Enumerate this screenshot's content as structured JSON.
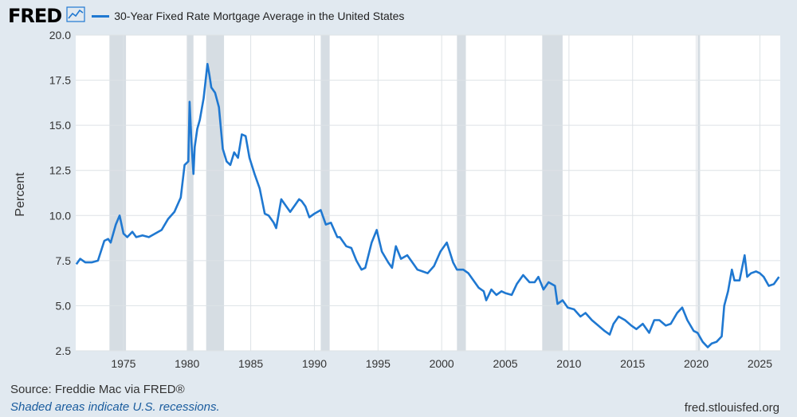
{
  "brand": {
    "logo": "FRED",
    "icon": "chart-line-icon"
  },
  "colors": {
    "line": "#1f78d1",
    "recession": "#d6dde3",
    "plot_bg": "#ffffff",
    "page_bg": "#e1e9f0",
    "grid": "#dde2e6"
  },
  "footer": {
    "source": "Source: Freddie Mac via FRED®",
    "note": "Shaded areas indicate U.S. recessions.",
    "url": "fred.stlouisfed.org"
  },
  "chart_data": {
    "type": "line",
    "title": "",
    "xlabel": "",
    "ylabel": "Percent",
    "xlim": [
      1971.25,
      2026.6
    ],
    "ylim": [
      2.5,
      20.0
    ],
    "yticks": [
      "2.5",
      "5.0",
      "7.5",
      "10.0",
      "12.5",
      "15.0",
      "17.5",
      "20.0"
    ],
    "xticks": [
      "1975",
      "1980",
      "1985",
      "1990",
      "1995",
      "2000",
      "2005",
      "2010",
      "2015",
      "2020",
      "2025"
    ],
    "grid": true,
    "legend_position": "top-left",
    "recessions": [
      [
        1973.9,
        1975.2
      ],
      [
        1980.0,
        1980.5
      ],
      [
        1981.5,
        1982.9
      ],
      [
        1990.5,
        1991.2
      ],
      [
        2001.2,
        2001.9
      ],
      [
        2007.9,
        2009.5
      ],
      [
        2020.1,
        2020.3
      ]
    ],
    "series": [
      {
        "name": "30-Year Fixed Rate Mortgage Average in the United States",
        "x": [
          1971.3,
          1971.6,
          1972.0,
          1972.5,
          1973.0,
          1973.5,
          1973.8,
          1974.0,
          1974.4,
          1974.7,
          1975.0,
          1975.3,
          1975.7,
          1976.0,
          1976.5,
          1977.0,
          1977.5,
          1978.0,
          1978.5,
          1979.0,
          1979.5,
          1979.8,
          1980.1,
          1980.2,
          1980.35,
          1980.5,
          1980.6,
          1980.8,
          1981.0,
          1981.3,
          1981.6,
          1981.75,
          1981.9,
          1982.2,
          1982.5,
          1982.8,
          1983.1,
          1983.4,
          1983.7,
          1984.0,
          1984.3,
          1984.6,
          1984.9,
          1985.3,
          1985.7,
          1986.1,
          1986.4,
          1986.8,
          1987.0,
          1987.4,
          1987.8,
          1988.1,
          1988.5,
          1988.8,
          1989.0,
          1989.3,
          1989.6,
          1990.0,
          1990.5,
          1990.9,
          1991.3,
          1991.8,
          1992.0,
          1992.5,
          1992.9,
          1993.3,
          1993.7,
          1994.0,
          1994.5,
          1994.9,
          1995.3,
          1995.8,
          1996.1,
          1996.4,
          1996.8,
          1997.3,
          1997.8,
          1998.1,
          1998.5,
          1998.9,
          1999.4,
          1999.9,
          2000.4,
          2000.9,
          2001.2,
          2001.7,
          2002.1,
          2002.5,
          2002.9,
          2003.3,
          2003.5,
          2003.9,
          2004.3,
          2004.7,
          2005.0,
          2005.5,
          2005.9,
          2006.4,
          2006.9,
          2007.3,
          2007.6,
          2008.0,
          2008.4,
          2008.9,
          2009.1,
          2009.5,
          2009.9,
          2010.4,
          2010.9,
          2011.3,
          2011.8,
          2012.3,
          2012.8,
          2013.2,
          2013.5,
          2013.9,
          2014.4,
          2014.9,
          2015.3,
          2015.8,
          2016.3,
          2016.7,
          2017.1,
          2017.6,
          2018.0,
          2018.5,
          2018.9,
          2019.3,
          2019.8,
          2020.1,
          2020.5,
          2020.9,
          2021.2,
          2021.6,
          2022.0,
          2022.2,
          2022.5,
          2022.8,
          2023.0,
          2023.4,
          2023.8,
          2024.0,
          2024.3,
          2024.7,
          2025.0,
          2025.3,
          2025.7,
          2026.1,
          2026.5
        ],
        "values": [
          7.3,
          7.6,
          7.4,
          7.4,
          7.5,
          8.6,
          8.7,
          8.5,
          9.5,
          10.0,
          9.0,
          8.8,
          9.1,
          8.8,
          8.9,
          8.8,
          9.0,
          9.2,
          9.8,
          10.2,
          11.0,
          12.8,
          13.0,
          16.3,
          14.0,
          12.3,
          13.8,
          14.8,
          15.3,
          16.5,
          18.4,
          17.8,
          17.1,
          16.8,
          16.0,
          13.7,
          13.0,
          12.8,
          13.5,
          13.2,
          14.5,
          14.4,
          13.2,
          12.3,
          11.5,
          10.1,
          10.0,
          9.6,
          9.3,
          10.9,
          10.5,
          10.2,
          10.6,
          10.9,
          10.8,
          10.5,
          9.9,
          10.1,
          10.3,
          9.5,
          9.6,
          8.8,
          8.8,
          8.3,
          8.2,
          7.5,
          7.0,
          7.1,
          8.5,
          9.2,
          8.0,
          7.4,
          7.1,
          8.3,
          7.6,
          7.8,
          7.3,
          7.0,
          6.9,
          6.8,
          7.2,
          8.0,
          8.5,
          7.4,
          7.0,
          7.0,
          6.8,
          6.4,
          6.0,
          5.8,
          5.3,
          5.9,
          5.6,
          5.8,
          5.7,
          5.6,
          6.2,
          6.7,
          6.3,
          6.3,
          6.6,
          5.9,
          6.3,
          6.1,
          5.1,
          5.3,
          4.9,
          4.8,
          4.4,
          4.6,
          4.2,
          3.9,
          3.6,
          3.4,
          4.0,
          4.4,
          4.2,
          3.9,
          3.7,
          4.0,
          3.5,
          4.2,
          4.2,
          3.9,
          4.0,
          4.6,
          4.9,
          4.2,
          3.6,
          3.5,
          3.0,
          2.7,
          2.9,
          3.0,
          3.3,
          5.0,
          5.8,
          7.0,
          6.4,
          6.4,
          7.8,
          6.6,
          6.8,
          6.9,
          6.8,
          6.6,
          6.1,
          6.2,
          6.6
        ]
      }
    ]
  }
}
